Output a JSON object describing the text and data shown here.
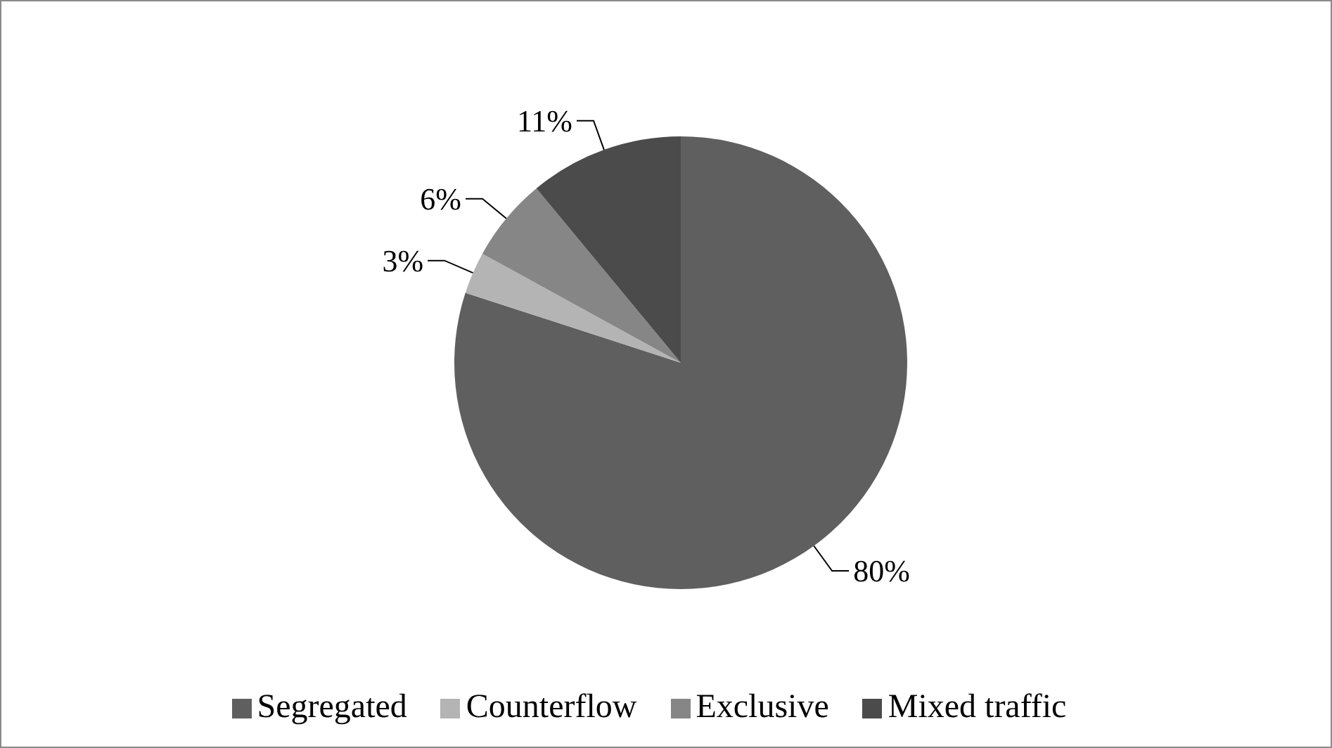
{
  "chart_data": {
    "type": "pie",
    "categories": [
      "Segregated",
      "Counterflow",
      "Exclusive",
      "Mixed traffic"
    ],
    "values": [
      80,
      3,
      6,
      11
    ],
    "value_labels": [
      "80%",
      "3%",
      "6%",
      "11%"
    ],
    "colors": [
      "#5f5f5f",
      "#b4b4b4",
      "#868686",
      "#4b4b4b"
    ],
    "legend": "bottom"
  }
}
